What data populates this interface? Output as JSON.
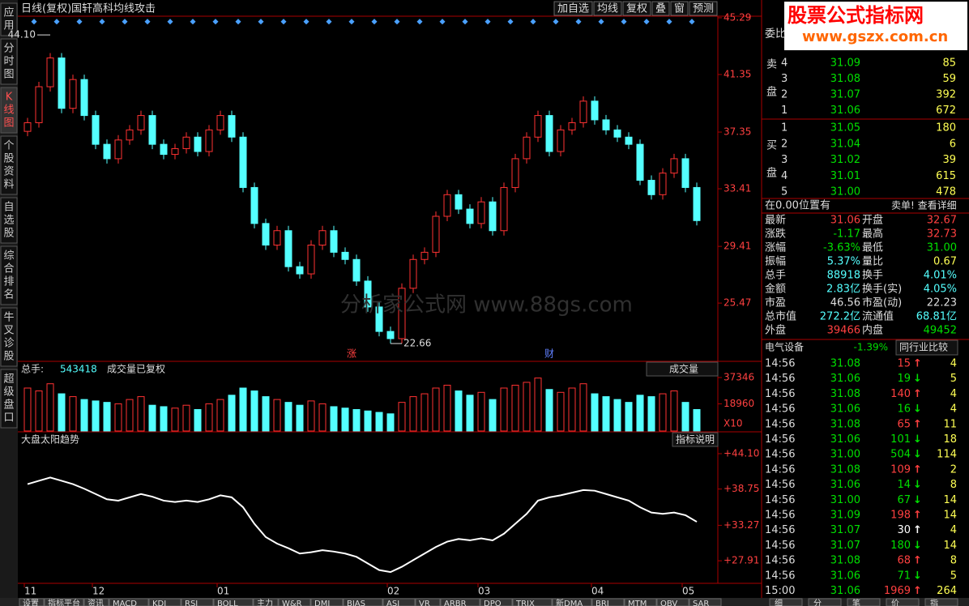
{
  "sidebar": [
    "应用",
    "分时图",
    "K线图",
    "个股资料",
    "自选股",
    "综合排名",
    "牛叉诊股",
    "超级盘口"
  ],
  "toolbar": {
    "title": "日线(复权)",
    "stock": "国轩高科",
    "indicator": "均线攻击",
    "buttons": [
      "加自选",
      "均线",
      "复权",
      "叠",
      "窗",
      "预测"
    ]
  },
  "price_chart": {
    "type": "candlestick",
    "closes": [
      38.0,
      40.5,
      42.5,
      39.0,
      41.0,
      38.5,
      36.5,
      35.5,
      36.8,
      37.5,
      38.5,
      36.5,
      35.8,
      36.2,
      37.0,
      36.0,
      37.5,
      38.5,
      37.0,
      33.5,
      31.0,
      29.5,
      30.5,
      28.0,
      27.5,
      29.5,
      30.5,
      29.0,
      28.5,
      27.0,
      25.2,
      23.5,
      23.0,
      26.5,
      28.5,
      29.0,
      31.5,
      33.0,
      32.0,
      31.0,
      32.5,
      30.5,
      33.5,
      35.5,
      37.0,
      38.5,
      36.0,
      37.5,
      38.0,
      39.5,
      38.2,
      37.5,
      37.0,
      36.5,
      34.0,
      33.0,
      34.5,
      35.5,
      33.5,
      31.2
    ],
    "dates": [
      "11",
      null,
      null,
      null,
      null,
      null,
      "12",
      null,
      null,
      null,
      null,
      null,
      null,
      null,
      null,
      null,
      null,
      "01",
      null,
      null,
      null,
      null,
      null,
      null,
      null,
      null,
      null,
      null,
      null,
      null,
      null,
      null,
      "02",
      null,
      null,
      null,
      null,
      null,
      null,
      null,
      "03",
      null,
      null,
      null,
      null,
      null,
      null,
      null,
      null,
      null,
      "04",
      null,
      null,
      null,
      null,
      null,
      null,
      null,
      "05",
      null
    ],
    "ylim": [
      21.48,
      45.4
    ],
    "yticks": [
      45.29,
      41.35,
      37.35,
      33.41,
      29.41,
      25.47
    ],
    "high": {
      "value": 44.1,
      "label": "44.10"
    },
    "low": {
      "value": 22.66,
      "label": "22.66"
    },
    "markers": [
      "涨",
      "财"
    ],
    "color_up": "#ff3232",
    "color_down": "#54ffff"
  },
  "volume_chart": {
    "type": "bar",
    "total_label": "总手:",
    "total": 543418,
    "note": "成交量已复权",
    "button": "成交量",
    "values": [
      30000,
      28000,
      33000,
      26000,
      24000,
      22000,
      21000,
      20000,
      19000,
      22000,
      24000,
      18000,
      17000,
      16000,
      18000,
      15000,
      19000,
      22000,
      25000,
      30000,
      28000,
      24000,
      22000,
      20000,
      18000,
      21000,
      19000,
      17000,
      16000,
      15000,
      14000,
      13000,
      12000,
      20000,
      24000,
      26000,
      30000,
      32000,
      28000,
      25000,
      27000,
      22000,
      30000,
      32000,
      34000,
      37000,
      29000,
      27000,
      30000,
      33000,
      26000,
      24000,
      22000,
      20000,
      25000,
      24000,
      26000,
      28000,
      20000,
      15000
    ],
    "ylim": [
      0,
      37346
    ],
    "yticks": [
      37346,
      18960
    ],
    "scale_label": "X10"
  },
  "indicator_chart": {
    "type": "line",
    "title": "大盘太阳趋势",
    "button": "指标说明",
    "values": [
      39.5,
      40.0,
      40.5,
      40.0,
      39.5,
      38.8,
      38.0,
      37.2,
      37.0,
      37.5,
      38.0,
      37.6,
      37.0,
      36.8,
      37.0,
      36.8,
      37.2,
      37.8,
      37.5,
      36.0,
      33.5,
      31.5,
      30.5,
      29.8,
      29.0,
      29.2,
      29.5,
      29.3,
      29.0,
      28.5,
      27.5,
      26.5,
      26.2,
      27.0,
      28.0,
      29.0,
      30.0,
      30.8,
      31.2,
      31.0,
      31.3,
      31.0,
      32.0,
      33.5,
      35.0,
      37.0,
      37.5,
      37.8,
      38.2,
      38.6,
      38.5,
      38.0,
      37.5,
      37.0,
      36.0,
      35.2,
      35.0,
      35.2,
      34.8,
      33.8
    ],
    "color": "#ffffff",
    "ylim": [
      24.5,
      46.3
    ],
    "yticks": [
      {
        "value": 44.1,
        "label": "+44.10"
      },
      {
        "value": 38.75,
        "label": "+38.75"
      },
      {
        "value": 33.27,
        "label": "+33.27"
      },
      {
        "value": 27.91,
        "label": "+27.91"
      }
    ]
  },
  "watermark": {
    "title": "股票公式指标网",
    "url": "www.gszx.com.cn",
    "center": "分析家公式网 www.88gs.com"
  },
  "order_book": {
    "header": "委比",
    "sell_label": [
      "卖",
      "盘"
    ],
    "buy_label": [
      "买",
      "盘"
    ],
    "sells": [
      [
        "4",
        "31.09",
        "85"
      ],
      [
        "3",
        "31.08",
        "59"
      ],
      [
        "2",
        "31.07",
        "392"
      ],
      [
        "1",
        "31.06",
        "672"
      ]
    ],
    "buys": [
      [
        "1",
        "31.05",
        "180"
      ],
      [
        "2",
        "31.04",
        "6"
      ],
      [
        "3",
        "31.02",
        "39"
      ],
      [
        "4",
        "31.01",
        "615"
      ],
      [
        "5",
        "31.00",
        "478"
      ]
    ],
    "position": "在0.00位置有",
    "detail": "卖单! 查看详细"
  },
  "stats": [
    [
      {
        "label": "最新",
        "value": "31.06",
        "color": "#ff4040"
      },
      {
        "label": "开盘",
        "value": "32.67",
        "color": "#ff4040"
      }
    ],
    [
      {
        "label": "涨跌",
        "value": "-1.17",
        "color": "#00e000"
      },
      {
        "label": "最高",
        "value": "32.73",
        "color": "#ff4040"
      }
    ],
    [
      {
        "label": "涨幅",
        "value": "-3.63%",
        "color": "#00e000"
      },
      {
        "label": "最低",
        "value": "31.00",
        "color": "#00e000"
      }
    ],
    [
      {
        "label": "振幅",
        "value": "5.37%",
        "color": "#54ffff"
      },
      {
        "label": "量比",
        "value": "0.67",
        "color": "#ffff54"
      }
    ],
    [
      {
        "label": "总手",
        "value": "88918",
        "color": "#54ffff"
      },
      {
        "label": "换手",
        "value": "4.01%",
        "color": "#54ffff"
      }
    ],
    [
      {
        "label": "金额",
        "value": "2.83亿",
        "color": "#54ffff"
      },
      {
        "label": "换手(实)",
        "value": "4.05%",
        "color": "#54ffff"
      }
    ],
    [
      {
        "label": "市盈",
        "value": "46.56",
        "color": "#dddddd"
      },
      {
        "label": "市盈(动)",
        "value": "22.23",
        "color": "#dddddd"
      }
    ],
    [
      {
        "label": "总市值",
        "value": "272.2亿",
        "color": "#54ffff"
      },
      {
        "label": "流通值",
        "value": "68.81亿",
        "color": "#54ffff"
      }
    ],
    [
      {
        "label": "外盘",
        "value": "39466",
        "color": "#ff4040"
      },
      {
        "label": "内盘",
        "value": "49452",
        "color": "#00e000"
      }
    ]
  ],
  "industry": {
    "name": "电气设备",
    "change": "-1.39%",
    "button": "同行业比较"
  },
  "ticks": [
    {
      "time": "14:56",
      "price": "31.08",
      "vol": "15",
      "arrow": "↑",
      "count": "4",
      "color": "#ff4040"
    },
    {
      "time": "14:56",
      "price": "31.06",
      "vol": "19",
      "arrow": "↓",
      "count": "5",
      "color": "#00e000"
    },
    {
      "time": "14:56",
      "price": "31.08",
      "vol": "140",
      "arrow": "↑",
      "count": "4",
      "color": "#ff4040"
    },
    {
      "time": "14:56",
      "price": "31.06",
      "vol": "16",
      "arrow": "↓",
      "count": "4",
      "color": "#00e000"
    },
    {
      "time": "14:56",
      "price": "31.08",
      "vol": "65",
      "arrow": "↑",
      "count": "11",
      "color": "#ff4040"
    },
    {
      "time": "14:56",
      "price": "31.06",
      "vol": "101",
      "arrow": "↓",
      "count": "18",
      "color": "#00e000"
    },
    {
      "time": "14:56",
      "price": "31.00",
      "vol": "504",
      "arrow": "↓",
      "count": "114",
      "color": "#00e000"
    },
    {
      "time": "14:56",
      "price": "31.08",
      "vol": "109",
      "arrow": "↑",
      "count": "2",
      "color": "#ff4040"
    },
    {
      "time": "14:56",
      "price": "31.06",
      "vol": "14",
      "arrow": "↓",
      "count": "8",
      "color": "#00e000"
    },
    {
      "time": "14:56",
      "price": "31.00",
      "vol": "67",
      "arrow": "↓",
      "count": "14",
      "color": "#00e000"
    },
    {
      "time": "14:56",
      "price": "31.09",
      "vol": "198",
      "arrow": "↑",
      "count": "14",
      "color": "#ff4040"
    },
    {
      "time": "14:56",
      "price": "31.07",
      "vol": "30",
      "arrow": "↑",
      "count": "4",
      "color": "#ffffff"
    },
    {
      "time": "14:56",
      "price": "31.07",
      "vol": "180",
      "arrow": "↓",
      "count": "14",
      "color": "#00e000"
    },
    {
      "time": "14:56",
      "price": "31.08",
      "vol": "68",
      "arrow": "↑",
      "count": "8",
      "color": "#ff4040"
    },
    {
      "time": "14:56",
      "price": "31.06",
      "vol": "71",
      "arrow": "↓",
      "count": "5",
      "color": "#00e000"
    },
    {
      "time": "15:00",
      "price": "31.06",
      "vol": "1969",
      "arrow": "↑",
      "count": "264",
      "color": "#ff4040"
    }
  ],
  "bottom_tabs": [
    "设置",
    "指标平台",
    "资讯",
    "MACD",
    "KDJ",
    "RSI",
    "BOLL",
    "主力",
    "W&R",
    "DMI",
    "BIAS",
    "ASI",
    "VR",
    "ARBR",
    "DPO",
    "TRIX",
    "新DMA",
    "BRI",
    "MTM",
    "OBV",
    "SAR",
    "EXPMA"
  ],
  "right_tabs": [
    "细",
    "分",
    "笔",
    "价",
    "指"
  ]
}
